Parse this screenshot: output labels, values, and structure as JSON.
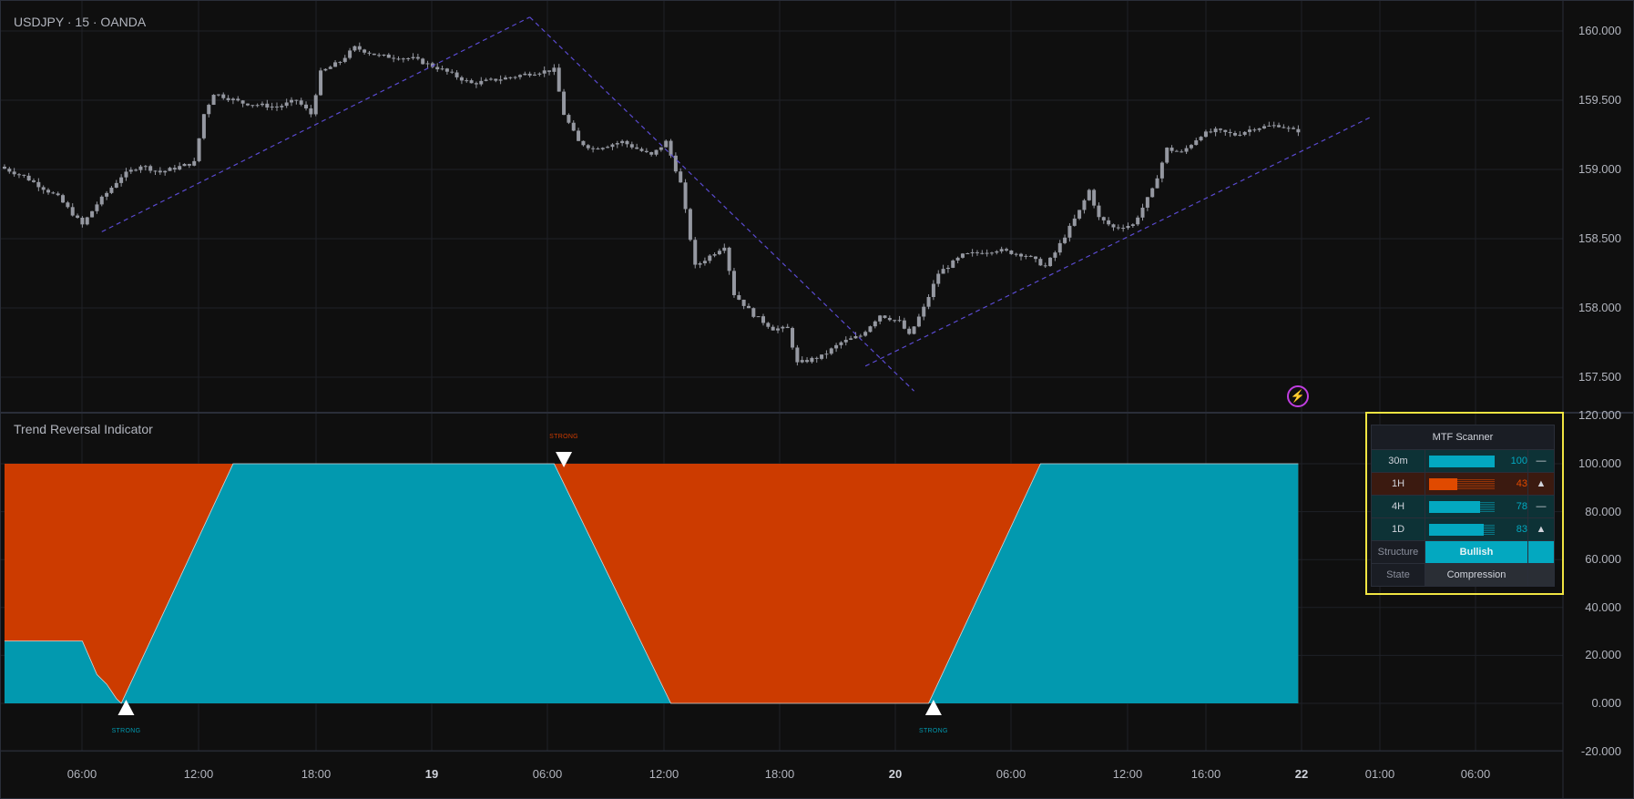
{
  "header": {
    "symbol_title": "USDJPY · 15 · OANDA"
  },
  "indicator": {
    "title": "Trend Reversal Indicator"
  },
  "colors": {
    "bull": "#0299af",
    "bear": "#cc3b00",
    "candle": "#9598a1",
    "trendline": "#5a4ad0",
    "table_border": "#f0e442",
    "alert": "#c03ee0"
  },
  "icons": {
    "alert": "lightning-icon"
  },
  "price_axis": [
    "160.000",
    "159.500",
    "159.000",
    "158.500",
    "158.000",
    "157.500"
  ],
  "indicator_axis": [
    "120.000",
    "100.000",
    "80.000",
    "60.000",
    "40.000",
    "20.000",
    "0.000",
    "-20.000"
  ],
  "time_axis": [
    {
      "label": "06:00",
      "bold": false
    },
    {
      "label": "12:00",
      "bold": false
    },
    {
      "label": "18:00",
      "bold": false
    },
    {
      "label": "19",
      "bold": true
    },
    {
      "label": "06:00",
      "bold": false
    },
    {
      "label": "12:00",
      "bold": false
    },
    {
      "label": "18:00",
      "bold": false
    },
    {
      "label": "20",
      "bold": true
    },
    {
      "label": "06:00",
      "bold": false
    },
    {
      "label": "12:00",
      "bold": false
    },
    {
      "label": "16:00",
      "bold": false
    },
    {
      "label": "22",
      "bold": true
    },
    {
      "label": "01:00",
      "bold": false
    },
    {
      "label": "06:00",
      "bold": false
    }
  ],
  "chart_data": [
    {
      "type": "candlestick",
      "symbol": "USDJPY",
      "interval": "15",
      "ylim": [
        157.4,
        160.1
      ],
      "price_path": [
        [
          "18 02:00",
          159.02
        ],
        [
          "18 03:15",
          158.95
        ],
        [
          "18 05:00",
          158.8
        ],
        [
          "18 06:15",
          158.6
        ],
        [
          "18 07:00",
          158.75
        ],
        [
          "18 08:15",
          158.95
        ],
        [
          "18 09:15",
          159.03
        ],
        [
          "18 10:15",
          158.98
        ],
        [
          "18 12:00",
          159.05
        ],
        [
          "18 12:30",
          159.4
        ],
        [
          "18 13:00",
          159.55
        ],
        [
          "18 14:30",
          159.48
        ],
        [
          "18 16:15",
          159.45
        ],
        [
          "18 17:15",
          159.5
        ],
        [
          "18 18:00",
          159.4
        ],
        [
          "18 18:30",
          159.7
        ],
        [
          "18 19:30",
          159.78
        ],
        [
          "18 20:15",
          159.88
        ],
        [
          "18 21:30",
          159.82
        ],
        [
          "18 23:15",
          159.8
        ],
        [
          "19 00:45",
          159.72
        ],
        [
          "19 02:15",
          159.62
        ],
        [
          "19 04:00",
          159.66
        ],
        [
          "19 05:30",
          159.7
        ],
        [
          "19 06:30",
          159.72
        ],
        [
          "19 07:00",
          159.4
        ],
        [
          "19 07:45",
          159.2
        ],
        [
          "19 08:30",
          159.15
        ],
        [
          "19 10:00",
          159.2
        ],
        [
          "19 11:30",
          159.1
        ],
        [
          "19 12:15",
          159.2
        ],
        [
          "19 13:00",
          158.9
        ],
        [
          "19 13:45",
          158.3
        ],
        [
          "19 14:45",
          158.4
        ],
        [
          "19 15:15",
          158.45
        ],
        [
          "19 15:45",
          158.1
        ],
        [
          "19 16:45",
          157.95
        ],
        [
          "19 17:45",
          157.85
        ],
        [
          "19 18:30",
          157.85
        ],
        [
          "19 19:00",
          157.6
        ],
        [
          "19 20:15",
          157.65
        ],
        [
          "19 21:15",
          157.75
        ],
        [
          "19 22:15",
          157.8
        ],
        [
          "19 23:15",
          157.95
        ],
        [
          "20 00:15",
          157.9
        ],
        [
          "20 00:45",
          157.8
        ],
        [
          "20 01:30",
          158.0
        ],
        [
          "20 02:15",
          158.25
        ],
        [
          "20 03:30",
          158.38
        ],
        [
          "20 05:15",
          158.42
        ],
        [
          "20 06:45",
          158.38
        ],
        [
          "20 07:45",
          158.3
        ],
        [
          "20 08:15",
          158.4
        ],
        [
          "20 09:30",
          158.7
        ],
        [
          "20 10:00",
          158.85
        ],
        [
          "20 10:30",
          158.65
        ],
        [
          "20 11:15",
          158.58
        ],
        [
          "20 12:15",
          158.6
        ],
        [
          "20 13:15",
          158.85
        ],
        [
          "20 14:00",
          159.15
        ],
        [
          "20 14:45",
          159.12
        ],
        [
          "20 15:45",
          159.25
        ],
        [
          "20 16:30",
          159.28
        ],
        [
          "20 17:30",
          159.25
        ],
        [
          "20 18:30",
          159.3
        ],
        [
          "20 19:45",
          159.32
        ],
        [
          "20 20:30",
          159.28
        ]
      ],
      "trendlines": [
        {
          "from": [
            "18 07:00",
            158.55
          ],
          "to": [
            "19 05:00",
            160.1
          ]
        },
        {
          "from": [
            "19 05:00",
            160.1
          ],
          "to": [
            "20 00:45",
            157.4
          ]
        },
        {
          "from": [
            "19 22:15",
            157.58
          ],
          "to": [
            "21 00:15",
            159.38
          ]
        }
      ]
    },
    {
      "type": "area",
      "title": "Trend Reversal Indicator",
      "ylim": [
        -20,
        120
      ],
      "series": [
        [
          "18 02:00",
          26
        ],
        [
          "18 06:00",
          26
        ],
        [
          "18 06:45",
          12
        ],
        [
          "18 07:15",
          8
        ],
        [
          "18 07:45",
          2
        ],
        [
          "18 08:00",
          0
        ],
        [
          "18 13:45",
          100
        ],
        [
          "19 06:15",
          100
        ],
        [
          "19 12:15",
          0
        ],
        [
          "20 01:30",
          0
        ],
        [
          "20 07:15",
          100
        ],
        [
          "20 20:30",
          100
        ]
      ],
      "signals": [
        {
          "time": "18 08:15",
          "direction": "up",
          "label": "STRONG"
        },
        {
          "time": "19 06:45",
          "direction": "down",
          "label": "STRONG"
        },
        {
          "time": "20 01:45",
          "direction": "up",
          "label": "STRONG"
        }
      ]
    }
  ],
  "mtf": {
    "title": "MTF Scanner",
    "rows": [
      {
        "tf": "30m",
        "value": "100",
        "pct": 100,
        "dir": "—",
        "bias": "bull"
      },
      {
        "tf": "1H",
        "value": "43",
        "pct": 43,
        "dir": "▲",
        "bias": "bear"
      },
      {
        "tf": "4H",
        "value": "78",
        "pct": 78,
        "dir": "—",
        "bias": "bull"
      },
      {
        "tf": "1D",
        "value": "83",
        "pct": 83,
        "dir": "▲",
        "bias": "bull"
      }
    ],
    "structure_label": "Structure",
    "structure_value": "Bullish",
    "state_label": "State",
    "state_value": "Compression"
  }
}
